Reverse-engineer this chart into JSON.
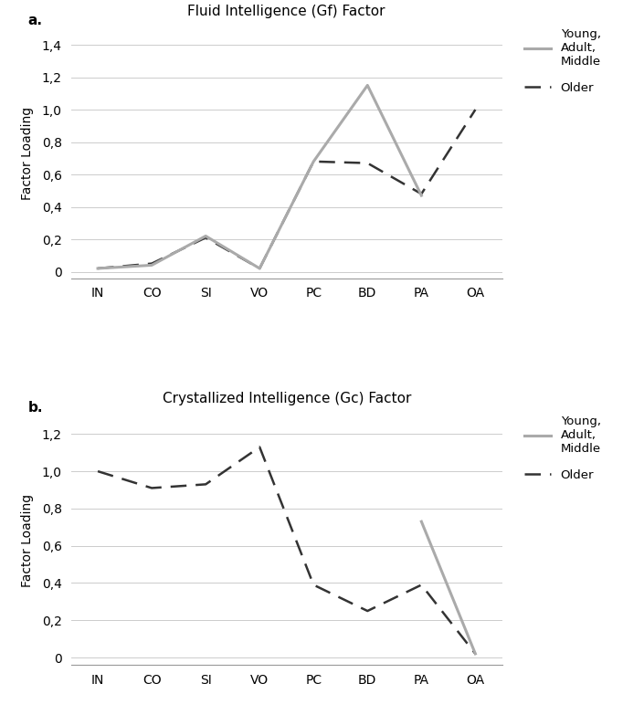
{
  "categories": [
    "IN",
    "CO",
    "SI",
    "VO",
    "PC",
    "BD",
    "PA",
    "OA"
  ],
  "gf_young_adult_middle": [
    0.02,
    0.04,
    0.22,
    0.02,
    0.68,
    1.15,
    0.47,
    null
  ],
  "gf_older": [
    0.02,
    0.05,
    0.21,
    0.02,
    0.68,
    0.67,
    0.48,
    1.0
  ],
  "gc_young_adult_middle": [
    null,
    null,
    null,
    null,
    null,
    null,
    0.73,
    0.02
  ],
  "gc_older": [
    1.0,
    0.91,
    0.93,
    1.13,
    0.39,
    0.25,
    0.39,
    0.02
  ],
  "title_a": "Fluid Intelligence (Gf) Factor",
  "title_b": "Crystallized Intelligence (Gc) Factor",
  "ylabel": "Factor Loading",
  "young_color": "#aaaaaa",
  "older_color": "#333333",
  "legend_label_young": "Young,\nAdult,\nMiddle",
  "legend_label_older": "Older",
  "ylim_a": [
    -0.04,
    1.5
  ],
  "yticks_a": [
    0,
    0.2,
    0.4,
    0.6,
    0.8,
    1.0,
    1.2,
    1.4
  ],
  "ylim_b": [
    -0.04,
    1.3
  ],
  "yticks_b": [
    0,
    0.2,
    0.4,
    0.6,
    0.8,
    1.0,
    1.2
  ],
  "panel_a_label": "a.",
  "panel_b_label": "b."
}
